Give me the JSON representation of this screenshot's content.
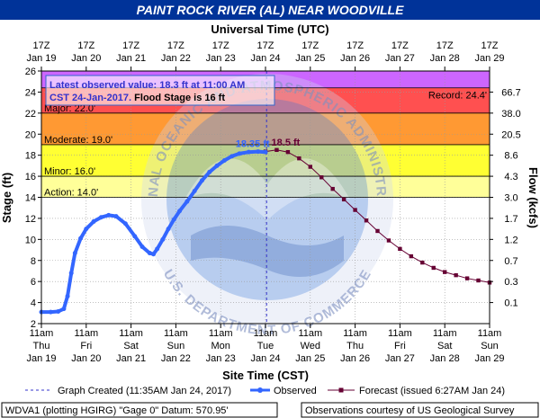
{
  "colors": {
    "title_bar": "#003399",
    "record_band": "#cc66ff",
    "major_band": "#ff5050",
    "moderate_band": "#ff9933",
    "minor_band": "#ffff33",
    "observed": "#3366ff",
    "forecast": "#660033"
  },
  "chart_data": {
    "type": "line",
    "title": "PAINT ROCK RIVER (AL) NEAR WOODVILLE",
    "top_axis_title": "Universal Time (UTC)",
    "top_ticks": [
      {
        "l1": "17Z",
        "l2": "Jan 19"
      },
      {
        "l1": "17Z",
        "l2": "Jan 20"
      },
      {
        "l1": "17Z",
        "l2": "Jan 21"
      },
      {
        "l1": "17Z",
        "l2": "Jan 22"
      },
      {
        "l1": "17Z",
        "l2": "Jan 23"
      },
      {
        "l1": "17Z",
        "l2": "Jan 24"
      },
      {
        "l1": "17Z",
        "l2": "Jan 25"
      },
      {
        "l1": "17Z",
        "l2": "Jan 26"
      },
      {
        "l1": "17Z",
        "l2": "Jan 27"
      },
      {
        "l1": "17Z",
        "l2": "Jan 28"
      },
      {
        "l1": "17Z",
        "l2": "Jan 29"
      }
    ],
    "bottom_axis_title": "Site Time (CST)",
    "bottom_ticks": [
      {
        "l1": "11am",
        "l2": "Thu",
        "l3": "Jan 19"
      },
      {
        "l1": "11am",
        "l2": "Fri",
        "l3": "Jan 20"
      },
      {
        "l1": "11am",
        "l2": "Sat",
        "l3": "Jan 21"
      },
      {
        "l1": "11am",
        "l2": "Sun",
        "l3": "Jan 22"
      },
      {
        "l1": "11am",
        "l2": "Mon",
        "l3": "Jan 23"
      },
      {
        "l1": "11am",
        "l2": "Tue",
        "l3": "Jan 24"
      },
      {
        "l1": "11am",
        "l2": "Wed",
        "l3": "Jan 25"
      },
      {
        "l1": "11am",
        "l2": "Thu",
        "l3": "Jan 26"
      },
      {
        "l1": "11am",
        "l2": "Fri",
        "l3": "Jan 27"
      },
      {
        "l1": "11am",
        "l2": "Sat",
        "l3": "Jan 28"
      },
      {
        "l1": "11am",
        "l2": "Sun",
        "l3": "Jan 29"
      }
    ],
    "xlim": [
      "2017-01-19T11:00",
      "2017-01-29T11:00"
    ],
    "y_left": {
      "label": "Stage (ft)",
      "ylim": [
        2,
        26
      ],
      "ticks": [
        "2",
        "4",
        "6",
        "8",
        "10",
        "12",
        "14",
        "16",
        "18",
        "20",
        "22",
        "24",
        "26"
      ]
    },
    "y_right": {
      "label": "Flow (kcfs)",
      "ticks": [
        {
          "stage": 4,
          "label": "0.1"
        },
        {
          "stage": 6,
          "label": "0.3"
        },
        {
          "stage": 8,
          "label": "0.7"
        },
        {
          "stage": 10,
          "label": "1.2"
        },
        {
          "stage": 12,
          "label": "1.7"
        },
        {
          "stage": 14,
          "label": "3.0"
        },
        {
          "stage": 16,
          "label": "4.3"
        },
        {
          "stage": 18,
          "label": "8.6"
        },
        {
          "stage": 20,
          "label": "20.5"
        },
        {
          "stage": 22,
          "label": "38.0"
        },
        {
          "stage": 24,
          "label": "66.7"
        }
      ]
    },
    "grid": true,
    "flood_categories": [
      {
        "label": "Action: 14.0'",
        "from": 14,
        "to": 16
      },
      {
        "label": "Minor: 16.0'",
        "from": 16,
        "to": 19
      },
      {
        "label": "Moderate: 19.0'",
        "from": 19,
        "to": 22
      },
      {
        "label": "Major: 22.0'",
        "from": 22,
        "to": 24.4
      },
      {
        "label": "Record: 24.4'",
        "from": 24.4,
        "to": 26
      }
    ],
    "info_box": {
      "line1": "Latest observed value: 18.3 ft at 11:00 AM",
      "line2a": "CST 24-Jan-2017.",
      "line2b": " Flood Stage is 16 ft"
    },
    "graph_created": "2017-01-24T11:35",
    "annotations": [
      {
        "text": "18.35 ft",
        "kind": "observed_crest"
      },
      {
        "text": "18.5 ft",
        "kind": "forecast_crest"
      }
    ],
    "series": [
      {
        "name": "Observed",
        "style": "line",
        "points": [
          [
            "2017-01-19T11:00",
            3.1
          ],
          [
            "2017-01-19T16:00",
            3.1
          ],
          [
            "2017-01-19T20:00",
            3.15
          ],
          [
            "2017-01-19T23:00",
            3.4
          ],
          [
            "2017-01-20T01:00",
            4.6
          ],
          [
            "2017-01-20T03:00",
            6.8
          ],
          [
            "2017-01-20T05:00",
            8.7
          ],
          [
            "2017-01-20T08:00",
            10.1
          ],
          [
            "2017-01-20T11:00",
            11.0
          ],
          [
            "2017-01-20T15:00",
            11.7
          ],
          [
            "2017-01-20T19:00",
            12.1
          ],
          [
            "2017-01-20T23:00",
            12.3
          ],
          [
            "2017-01-21T03:00",
            12.2
          ],
          [
            "2017-01-21T08:00",
            11.5
          ],
          [
            "2017-01-21T13:00",
            10.3
          ],
          [
            "2017-01-21T17:00",
            9.3
          ],
          [
            "2017-01-21T21:00",
            8.7
          ],
          [
            "2017-01-21T23:00",
            8.6
          ],
          [
            "2017-01-22T01:00",
            9.1
          ],
          [
            "2017-01-22T04:00",
            10.0
          ],
          [
            "2017-01-22T07:00",
            11.0
          ],
          [
            "2017-01-22T10:00",
            11.9
          ],
          [
            "2017-01-22T13:00",
            12.7
          ],
          [
            "2017-01-22T17:00",
            13.6
          ],
          [
            "2017-01-22T21:00",
            14.6
          ],
          [
            "2017-01-23T01:00",
            15.6
          ],
          [
            "2017-01-23T05:00",
            16.4
          ],
          [
            "2017-01-23T09:00",
            17.0
          ],
          [
            "2017-01-23T13:00",
            17.5
          ],
          [
            "2017-01-23T17:00",
            17.9
          ],
          [
            "2017-01-23T21:00",
            18.15
          ],
          [
            "2017-01-24T02:00",
            18.3
          ],
          [
            "2017-01-24T07:00",
            18.35
          ],
          [
            "2017-01-24T11:00",
            18.3
          ]
        ]
      },
      {
        "name": "Forecast (issued 6:27AM Jan 24)",
        "style": "line+markers",
        "points": [
          [
            "2017-01-24T11:00",
            18.35
          ],
          [
            "2017-01-24T17:00",
            18.5
          ],
          [
            "2017-01-24T23:00",
            18.3
          ],
          [
            "2017-01-25T05:00",
            17.7
          ],
          [
            "2017-01-25T11:00",
            16.9
          ],
          [
            "2017-01-25T17:00",
            15.9
          ],
          [
            "2017-01-25T23:00",
            14.8
          ],
          [
            "2017-01-26T05:00",
            13.8
          ],
          [
            "2017-01-26T11:00",
            12.8
          ],
          [
            "2017-01-26T17:00",
            11.8
          ],
          [
            "2017-01-26T23:00",
            10.8
          ],
          [
            "2017-01-27T05:00",
            9.9
          ],
          [
            "2017-01-27T11:00",
            9.1
          ],
          [
            "2017-01-27T17:00",
            8.4
          ],
          [
            "2017-01-27T23:00",
            7.8
          ],
          [
            "2017-01-28T05:00",
            7.3
          ],
          [
            "2017-01-28T11:00",
            6.9
          ],
          [
            "2017-01-28T17:00",
            6.6
          ],
          [
            "2017-01-28T23:00",
            6.3
          ],
          [
            "2017-01-29T05:00",
            6.1
          ],
          [
            "2017-01-29T11:00",
            5.9
          ]
        ]
      }
    ],
    "legend": {
      "position": "bottom",
      "graph_created": "Graph Created (11:35AM Jan 24, 2017)",
      "observed": "Observed",
      "forecast": "Forecast (issued 6:27AM Jan 24)"
    },
    "footer": {
      "left": "WDVA1 (plotting HGIRG) \"Gage 0\" Datum: 570.95'",
      "right": "Observations courtesy of US Geological Survey"
    },
    "watermark": {
      "top_text": "NATIONAL OCEANIC AND ATMOSPHERIC ADMINISTRATION",
      "bottom_text": "U.S. DEPARTMENT OF COMMERCE"
    }
  }
}
